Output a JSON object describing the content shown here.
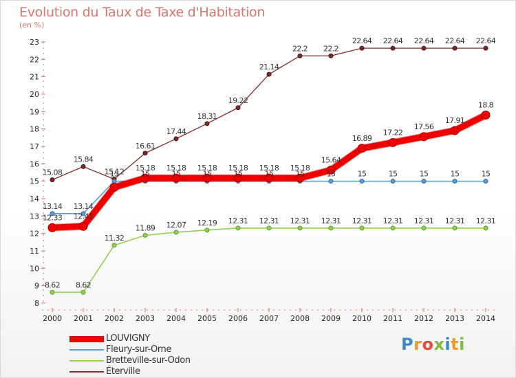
{
  "header": {
    "title": "Evolution du Taux de Taxe d'Habitation",
    "subtitle": "(en %)"
  },
  "logo": {
    "text": "Proxiti"
  },
  "chart_data": {
    "type": "line",
    "title": "Evolution du Taux de Taxe d'Habitation",
    "ylabel": "(en %)",
    "xlabel": "",
    "x": [
      "2000",
      "2001",
      "2002",
      "2003",
      "2004",
      "2005",
      "2006",
      "2007",
      "2008",
      "2009",
      "2010",
      "2011",
      "2012",
      "2013",
      "2014"
    ],
    "ylim": [
      8,
      23
    ],
    "yticks": [
      8,
      9,
      10,
      11,
      12,
      13,
      14,
      15,
      16,
      17,
      18,
      19,
      20,
      21,
      22,
      23
    ],
    "grid": false,
    "legend_position": "bottom-left",
    "series": [
      {
        "name": "LOUVIGNY",
        "color": "#ee0000",
        "values": [
          12.33,
          12.41,
          14.65,
          15.18,
          15.18,
          15.18,
          15.18,
          15.18,
          15.18,
          15.64,
          16.89,
          17.22,
          17.56,
          17.91,
          18.8
        ],
        "labels": [
          "12.33",
          "12.41",
          "",
          "15.18",
          "15.18",
          "15.18",
          "15.18",
          "15.18",
          "15.18",
          "15.64",
          "16.89",
          "17.22",
          "17.56",
          "17.91",
          "18.8"
        ]
      },
      {
        "name": "Fleury-sur-Orne",
        "color": "#5b9bd5",
        "values": [
          13.14,
          13.14,
          15.0,
          15,
          15,
          15,
          15,
          15,
          15,
          15,
          15,
          15,
          15,
          15,
          15
        ],
        "labels": [
          "13.14",
          "13.14",
          "15",
          "15",
          "15",
          "15",
          "15",
          "15",
          "15",
          "15",
          "15",
          "15",
          "15",
          "15",
          "15"
        ]
      },
      {
        "name": "Bretteville-sur-Odon",
        "color": "#92d050",
        "values": [
          8.62,
          8.62,
          11.32,
          11.89,
          12.07,
          12.19,
          12.31,
          12.31,
          12.31,
          12.31,
          12.31,
          12.31,
          12.31,
          12.31,
          12.31
        ],
        "labels": [
          "8.62",
          "8.62",
          "11.32",
          "11.89",
          "12.07",
          "12.19",
          "12.31",
          "12.31",
          "12.31",
          "12.31",
          "12.31",
          "12.31",
          "12.31",
          "12.31",
          "12.31"
        ]
      },
      {
        "name": "Éterville",
        "color": "#7f2a2a",
        "values": [
          15.08,
          15.84,
          15.12,
          16.61,
          17.44,
          18.31,
          19.22,
          21.14,
          22.2,
          22.2,
          22.64,
          22.64,
          22.64,
          22.64,
          22.64
        ],
        "labels": [
          "15.08",
          "15.84",
          "15.12",
          "16.61",
          "17.44",
          "18.31",
          "19.22",
          "21.14",
          "22.2",
          "22.2",
          "22.64",
          "22.64",
          "22.64",
          "22.64",
          "22.64"
        ]
      }
    ]
  }
}
